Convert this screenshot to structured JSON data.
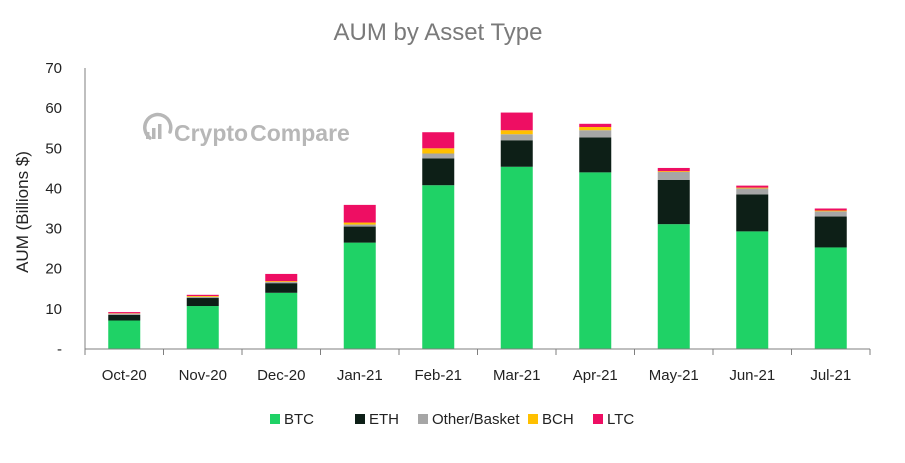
{
  "chart_data": {
    "type": "bar",
    "stacked": true,
    "title": "AUM by Asset Type",
    "xlabel": "",
    "ylabel": "AUM (Billions $)",
    "ylim": [
      0,
      70
    ],
    "yticks": [
      "-",
      "10",
      "20",
      "30",
      "40",
      "50",
      "60",
      "70"
    ],
    "grid": false,
    "legend_position": "bottom",
    "categories": [
      "Oct-20",
      "Nov-20",
      "Dec-20",
      "Jan-21",
      "Feb-21",
      "Mar-21",
      "Apr-21",
      "May-21",
      "Jun-21",
      "Jul-21"
    ],
    "series": [
      {
        "name": "BTC",
        "color": "#1fd266",
        "values": [
          7.1,
          10.7,
          14.0,
          26.5,
          40.8,
          45.4,
          44.0,
          31.1,
          29.3,
          25.3
        ]
      },
      {
        "name": "ETH",
        "color": "#0d1f17",
        "values": [
          1.4,
          2.0,
          2.4,
          4.0,
          6.7,
          6.6,
          8.7,
          11.0,
          9.2,
          7.7
        ]
      },
      {
        "name": "Other/Basket",
        "color": "#a6a6a6",
        "values": [
          0.3,
          0.3,
          0.3,
          0.5,
          1.2,
          1.5,
          1.8,
          2.0,
          1.5,
          1.3
        ]
      },
      {
        "name": "BCH",
        "color": "#ffc000",
        "values": [
          0.1,
          0.2,
          0.2,
          0.5,
          1.3,
          1.0,
          0.8,
          0.2,
          0.2,
          0.2
        ]
      },
      {
        "name": "LTC",
        "color": "#ee0e63",
        "values": [
          0.3,
          0.3,
          1.8,
          4.4,
          4.0,
          4.4,
          0.8,
          0.8,
          0.5,
          0.5
        ]
      }
    ]
  },
  "watermark": {
    "part1": "Crypto",
    "part2": "Compare",
    "icon": "cryptocompare-logo-icon"
  }
}
